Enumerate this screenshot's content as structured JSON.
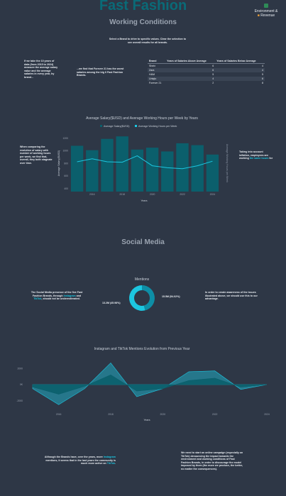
{
  "header": {
    "title": "Fast Fashion",
    "nav_label_line1": "Environment &",
    "nav_label_line2": "Revenue"
  },
  "working": {
    "section_title": "Working Conditions",
    "select_note": "Select a Brand to drive to specific values. Clear the selection to see overall results for all brands.",
    "left_note": "If we take the 10 years of data (from 2015 to 2024) measure the average salary value and the average salaries in every year, by brand...",
    "mid_note": "...we find that Forever 21 has the worst salaries among the big 6 Fast Fashion Brands.",
    "salary_left_note": "When comparing the evolution of salary with number of working hours per week, we find that, overall, they both stagnate over time.",
    "salary_right_note_a": "Taking into account inflation, employees are working ",
    "salary_right_note_hl": "the same hours",
    "salary_right_note_b": " for",
    "table": {
      "headers": [
        "Brand",
        "Years of Salaries Above Average",
        "Years of Salaries Below Average"
      ],
      "rows": [
        [
          "Shein",
          "6",
          "4"
        ],
        [
          "Zara",
          "6",
          "4"
        ],
        [
          "H&M",
          "5",
          "5"
        ],
        [
          "Uniqlo",
          "4",
          "6"
        ],
        [
          "Forever 21",
          "2",
          "8"
        ]
      ]
    }
  },
  "salary_chart": {
    "title": "Average Salary($USD) and Average Working Hours per Week by Years",
    "legend_salary": "Average Salary($USD)",
    "legend_hours": "Average Working Hours per Week",
    "ylabel_left": "Average Salary($USD)",
    "ylabel_right": "Average Working Hours per Week",
    "xlabel": "Years",
    "colors": {
      "bars": "#0b5f6c",
      "line": "#1cc6e0"
    }
  },
  "social": {
    "section_title": "Social Media",
    "donut_title": "Mentions",
    "left_note_a": "The Social Media presence of the five Fast Fashion Brands, through ",
    "left_note_hl1": "Instagram",
    "left_note_b": " and ",
    "left_note_hl2": "TikTok",
    "left_note_c": ", should not be underestimated.",
    "right_note": "In order to create awareness of the issues illustrated above, we should use this to our advantage.",
    "donut_label_left": "13.2M (45.98%)",
    "donut_label_right": "15.5M (54.02%)",
    "mentions_title": "Instagram and TikTok Mentions Evolution from Previous Year",
    "mentions_xlabel": "Years",
    "bottom_left_a": "Although the Brands have, over the years, more ",
    "bottom_left_hl1": "Instagram",
    "bottom_left_b": " mentions, it seems that in the last years the community is much more active on ",
    "bottom_left_hl2": "TikTok",
    "bottom_left_c": ".",
    "bottom_right": "We need to start an online campaign (especially on TikTok) denouncing the impact towards the environment and working conditions of Fast Fashion Brands, in order to discourage the model imposed by them (the more we produce, the better, no matter the consequences)."
  },
  "chart_data": [
    {
      "type": "bar",
      "title": "Average Salary($USD) and Average Working Hours per Week by Years",
      "x": [
        2015,
        2016,
        2017,
        2018,
        2019,
        2020,
        2021,
        2022,
        2023,
        2024
      ],
      "series": [
        {
          "name": "Average Salary($USD)",
          "type": "bar",
          "values": [
            1080,
            1010,
            1190,
            1230,
            1020,
            1050,
            990,
            1120,
            1090,
            940
          ]
        },
        {
          "name": "Average Working Hours per Week",
          "type": "line",
          "values": [
            45.0,
            46.5,
            45.0,
            44.8,
            48.0,
            43.0,
            42.0,
            41.5,
            43.0,
            45.3
          ]
        }
      ],
      "x_ticks": [
        "2016",
        "2018",
        "2020",
        "2022",
        "2024"
      ],
      "y_left_ticks": [
        "400",
        "600",
        "800",
        "1000",
        "1200"
      ],
      "ylim_left": [
        350,
        1300
      ],
      "ylim_right": [
        30,
        60
      ],
      "xlabel": "Years",
      "ylabel": "Average Salary($USD)",
      "ylabel_right": "Average Working Hours per Week",
      "legend": "top-center"
    },
    {
      "type": "pie",
      "title": "Mentions",
      "labels": [
        "13.2M (45.98%)",
        "15.5M (54.02%)"
      ],
      "values": [
        13.2,
        15.5
      ],
      "percents": [
        45.98,
        54.02
      ],
      "colors": [
        "#0e8ea6",
        "#1cc6e0"
      ]
    },
    {
      "type": "area",
      "title": "Instagram and TikTok Mentions Evolution from Previous Year",
      "x": [
        2015,
        2016,
        2017,
        2018,
        2019,
        2020,
        2021,
        2022,
        2023,
        2024
      ],
      "series": [
        {
          "values": [
            -300,
            -1200,
            -200,
            1200,
            -800,
            -500,
            500,
            800,
            -300,
            0
          ],
          "color": "#0b5f6c"
        },
        {
          "values": [
            -500,
            -2500,
            -500,
            2700,
            -1500,
            -500,
            1600,
            1700,
            -600,
            0
          ],
          "color": "#1cc6e0"
        }
      ],
      "x_ticks": [
        "2016",
        "2018",
        "2020",
        "2022",
        "2024"
      ],
      "y_ticks": [
        "-2000",
        "0K",
        "2000"
      ],
      "ylim": [
        -3000,
        3000
      ],
      "xlabel": "Years"
    }
  ]
}
